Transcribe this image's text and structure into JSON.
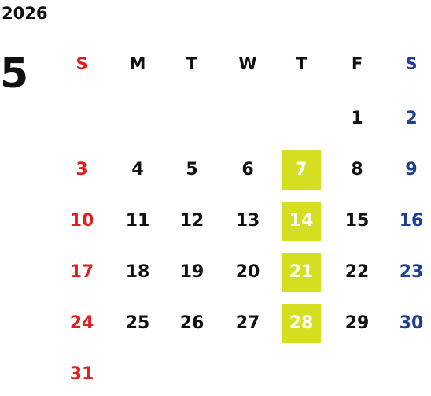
{
  "calendar": {
    "year": "2026",
    "month": "5",
    "weekdays": [
      "S",
      "M",
      "T",
      "W",
      "T",
      "F",
      "S"
    ],
    "colors": {
      "sunday": "#e02020",
      "saturday": "#1f3f95",
      "weekday": "#111111",
      "highlight_bg": "#d4df22",
      "highlight_text": "#ffffff"
    },
    "highlight_column": 4,
    "weeks": [
      [
        "",
        "",
        "",
        "",
        "",
        "1",
        "2"
      ],
      [
        "3",
        "4",
        "5",
        "6",
        "7",
        "8",
        "9"
      ],
      [
        "10",
        "11",
        "12",
        "13",
        "14",
        "15",
        "16"
      ],
      [
        "17",
        "18",
        "19",
        "20",
        "21",
        "22",
        "23"
      ],
      [
        "24",
        "25",
        "26",
        "27",
        "28",
        "29",
        "30"
      ],
      [
        "31",
        "",
        "",
        "",
        "",
        "",
        ""
      ]
    ]
  }
}
